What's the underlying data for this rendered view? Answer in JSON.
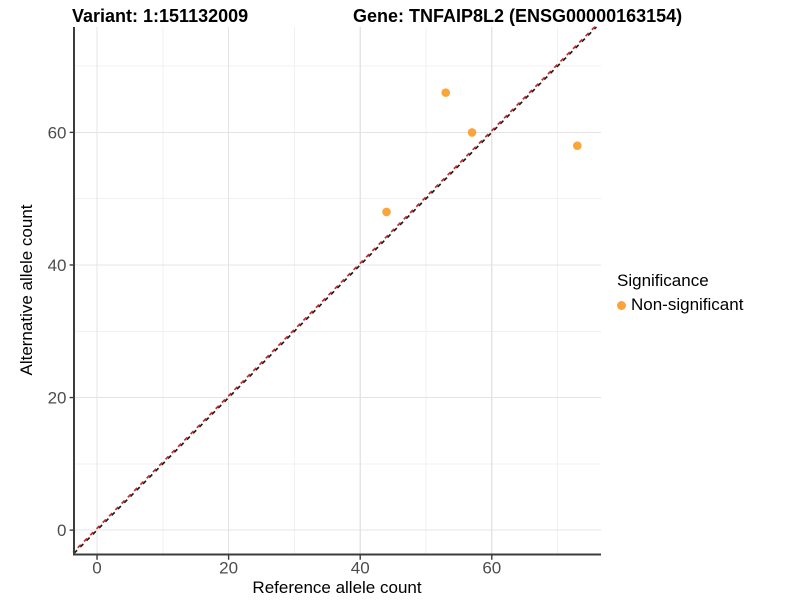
{
  "chart_data": {
    "type": "scatter",
    "titles": {
      "left": "Variant: 1:151132009",
      "right": "Gene: TNFAIP8L2 (ENSG00000163154)"
    },
    "xlabel": "Reference allele count",
    "ylabel": "Alternative allele count",
    "xlim": [
      -3.5,
      76.6
    ],
    "ylim": [
      -3.6,
      75.9
    ],
    "x_ticks": [
      0,
      20,
      40,
      60
    ],
    "y_ticks": [
      0,
      20,
      40,
      60
    ],
    "x_minor_ticks": [
      10,
      30,
      50,
      70
    ],
    "y_minor_ticks": [
      10,
      30,
      50,
      70
    ],
    "grid": {
      "major_color": "#E4E4E4",
      "minor_color": "#F1F1F1"
    },
    "axis_color": "#3C3C3C",
    "tick_label_color": "#4D4D4D",
    "series": [
      {
        "name": "Non-significant",
        "color": "#FAA43A",
        "points": [
          {
            "x": 44,
            "y": 48
          },
          {
            "x": 53,
            "y": 66
          },
          {
            "x": 57,
            "y": 60
          },
          {
            "x": 73,
            "y": 58
          }
        ]
      }
    ],
    "reference_lines": [
      {
        "name": "identity-line-black",
        "slope": 1,
        "intercept": 0,
        "style": "dashed",
        "color": "#1A1A1A"
      },
      {
        "name": "identity-line-red",
        "slope": 1,
        "intercept": 0,
        "style": "dashed",
        "color": "#C22E2E"
      }
    ],
    "legend": {
      "title": "Significance",
      "position": "right",
      "items": [
        {
          "label": "Non-significant",
          "color": "#FAA43A"
        }
      ]
    }
  }
}
